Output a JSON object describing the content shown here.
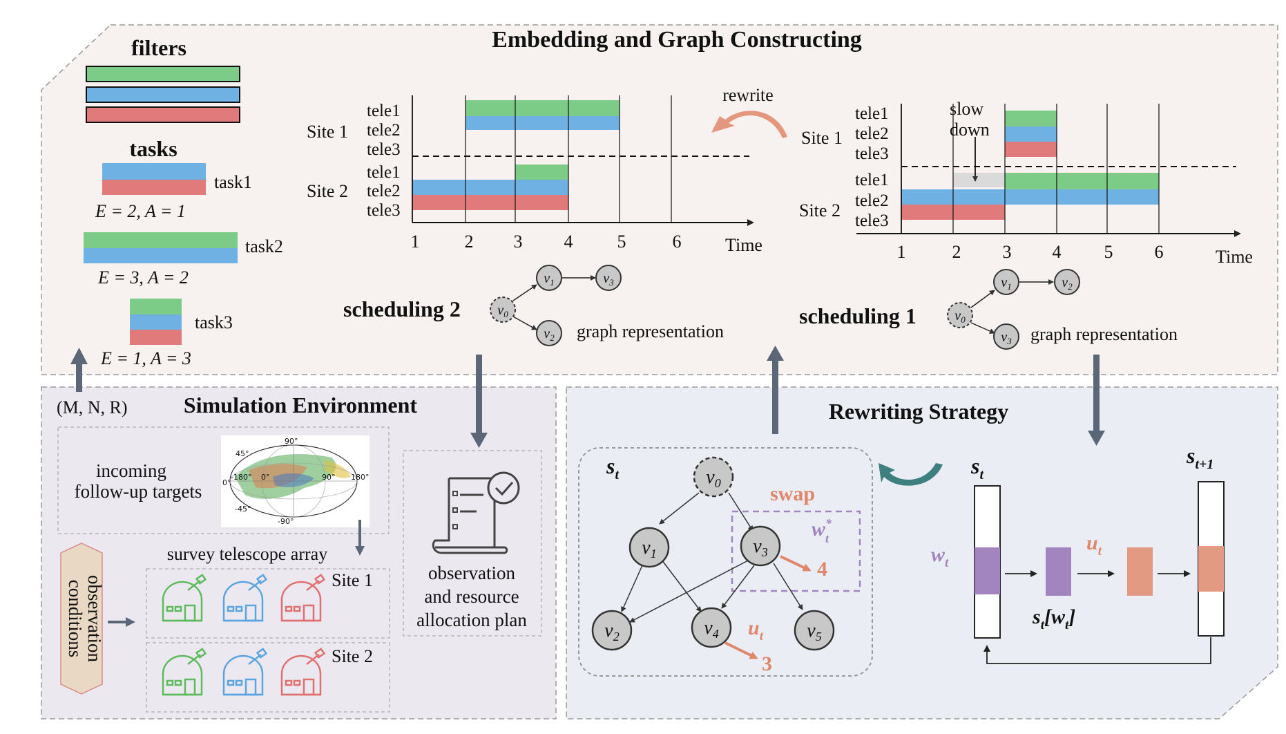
{
  "top": {
    "title": "Embedding and Graph Constructing",
    "filters_label": "filters",
    "tasks_label": "tasks",
    "tasks": [
      {
        "name": "task1",
        "formula": "E = 2, A = 1"
      },
      {
        "name": "task2",
        "formula": "E = 3, A = 2"
      },
      {
        "name": "task3",
        "formula": "E = 1, A = 3"
      }
    ],
    "rewrite_label": "rewrite",
    "slow_label": "slow",
    "down_label": "down",
    "scheduling2": "scheduling 2",
    "scheduling1": "scheduling 1",
    "graph_repr": "graph representation",
    "site1": "Site 1",
    "site2": "Site 2",
    "tele1": "tele1",
    "tele2": "tele2",
    "tele3": "tele3",
    "time": "Time",
    "ticks": [
      "1",
      "2",
      "3",
      "4",
      "5",
      "6"
    ]
  },
  "sim": {
    "title": "Simulation Environment",
    "params": "(M, N, R)",
    "incoming": "incoming",
    "followup": "follow-up targets",
    "array_label": "survey telescope array",
    "site1": "Site 1",
    "site2": "Site 2",
    "obs_cond_1": "observation",
    "obs_cond_2": "conditions",
    "plan_1": "observation",
    "plan_2": "and resource",
    "plan_3": "allocation plan",
    "map_labels": [
      "90°",
      "45°",
      "-180°",
      "0°",
      "90°",
      "180°",
      "-45°",
      "-90°",
      "0°"
    ]
  },
  "rewrite": {
    "title": "Rewriting Strategy",
    "st": "s",
    "st_sub": "t",
    "st1_sub": "t+1",
    "swap": "swap",
    "wt": "w",
    "ut": "u",
    "st_wt": "s",
    "nodes": [
      "v0",
      "v1",
      "v2",
      "v3",
      "v4",
      "v5"
    ],
    "num4": "4",
    "num3": "3"
  },
  "colors": {
    "green": "#7ccc88",
    "blue": "#6fb1e3",
    "red": "#e17b7b",
    "purple": "#a284bf",
    "salmon": "#e39a82",
    "orange_text": "#e0866a",
    "arrow_grey": "#5b6677",
    "top_bg": "#f7f2ef",
    "sim_bg": "#ece8f0",
    "rewrite_bg": "#eaeef4"
  }
}
